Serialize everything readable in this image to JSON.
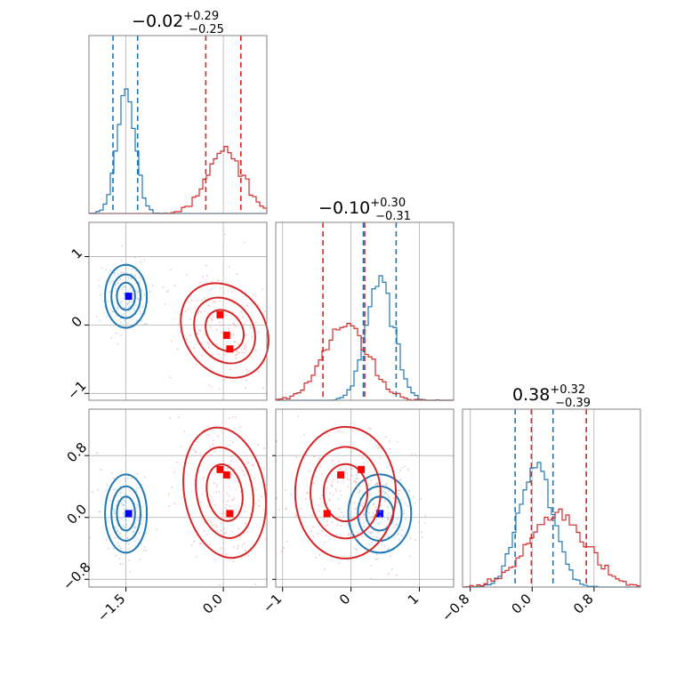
{
  "chart_data": {
    "type": "corner",
    "series": [
      {
        "name": "",
        "color": "#1f77b4",
        "mean": [
          -1.5,
          0.42,
          0.05
        ],
        "std": [
          0.14,
          0.2,
          0.22
        ],
        "quantiles_16_84": [
          [
            -1.7,
            -1.32
          ],
          [
            0.18,
            0.66
          ],
          [
            -0.22,
            0.27
          ]
        ],
        "markers": [
          [
            -1.46,
            0.42,
            0.05
          ]
        ]
      },
      {
        "name": "",
        "color": "#d62728",
        "mean": [
          0.02,
          -0.08,
          0.32
        ],
        "std": [
          0.27,
          0.32,
          0.37
        ],
        "quantiles_16_84": [
          [
            -0.27,
            0.27
          ],
          [
            -0.41,
            0.2
          ],
          [
            -0.01,
            0.7
          ]
        ],
        "markers": [
          [
            -0.05,
            0.15,
            0.62
          ],
          [
            0.1,
            -0.35,
            0.05
          ],
          [
            0.05,
            -0.15,
            0.55
          ]
        ]
      }
    ],
    "marker_colors": {
      "blue": "#0000ff",
      "red": "#ff0000"
    },
    "panels": {
      "diag": [
        {
          "param": 0,
          "title_value": "−0.02",
          "title_plus": "+0.29",
          "title_minus": "−0.25"
        },
        {
          "param": 1,
          "title_value": "−0.10",
          "title_plus": "+0.30",
          "title_minus": "−0.31"
        },
        {
          "param": 2,
          "title_value": "0.38",
          "title_plus": "+0.32",
          "title_minus": "−0.39"
        }
      ]
    },
    "axes": [
      {
        "param": 0,
        "range": [
          -2.07,
          0.67
        ],
        "ticks": [
          -1.5,
          0.0
        ],
        "tick_labels": [
          "−1.5",
          "0.0"
        ]
      },
      {
        "param": 1,
        "range": [
          -1.1,
          1.5
        ],
        "ticks": [
          -1,
          0,
          1
        ],
        "tick_labels": [
          "−1",
          "0",
          "1"
        ]
      },
      {
        "param": 2,
        "range": [
          -0.9,
          1.4
        ],
        "ticks": [
          -0.8,
          0.0,
          0.8
        ],
        "tick_labels": [
          "−0.8",
          "0.0",
          "0.8"
        ]
      }
    ],
    "xlabel": "",
    "ylabel": "",
    "title": "",
    "grid": true
  }
}
